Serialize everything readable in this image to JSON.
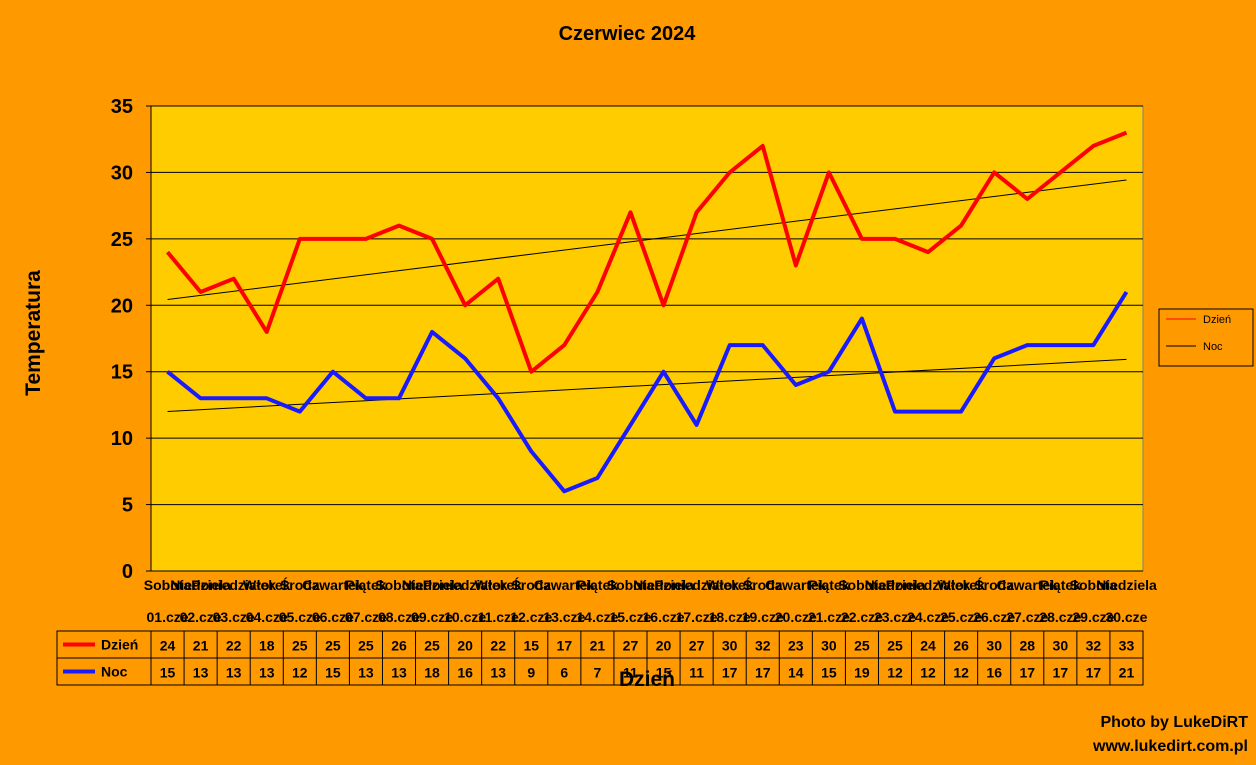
{
  "chart_data": {
    "type": "line",
    "title": "Czerwiec 2024",
    "xlabel": "Dzień",
    "ylabel": "Temperatura",
    "ylim": [
      0,
      35
    ],
    "yticks": [
      0,
      5,
      10,
      15,
      20,
      25,
      30,
      35
    ],
    "grid": "horizontal",
    "legend": "right",
    "categories_day": [
      "Sobota",
      "Niedziela",
      "Poniedziałek",
      "Wtorek",
      "Środa",
      "Czwartek",
      "Piątek",
      "Sobota",
      "Niedziela",
      "Poniedziałek",
      "Wtorek",
      "Środa",
      "Czwartek",
      "Piątek",
      "Sobota",
      "Niedziela",
      "Poniedziałek",
      "Wtorek",
      "Środa",
      "Czwartek",
      "Piątek",
      "Sobota",
      "Niedziela",
      "Poniedziałek",
      "Wtorek",
      "Środa",
      "Czwartek",
      "Piątek",
      "Sobota",
      "Niedziela"
    ],
    "categories_date": [
      "01.cze",
      "02.cze",
      "03.cze",
      "04.cze",
      "05.cze",
      "06.cze",
      "07.cze",
      "08.cze",
      "09.cze",
      "10.cze",
      "11.cze",
      "12.cze",
      "13.cze",
      "14.cze",
      "15.cze",
      "16.cze",
      "17.cze",
      "18.cze",
      "19.cze",
      "20.cze",
      "21.cze",
      "22.cze",
      "23.cze",
      "24.cze",
      "25.cze",
      "26.cze",
      "27.cze",
      "28.cze",
      "29.cze",
      "30.cze"
    ],
    "series": [
      {
        "name": "Dzień",
        "color": "#ff0000",
        "values": [
          24,
          21,
          22,
          18,
          25,
          25,
          25,
          26,
          25,
          20,
          22,
          15,
          17,
          21,
          27,
          20,
          27,
          30,
          32,
          23,
          30,
          25,
          25,
          24,
          26,
          30,
          28,
          30,
          32,
          33
        ]
      },
      {
        "name": "Noc",
        "color": "#1a1aff",
        "values": [
          15,
          13,
          13,
          13,
          12,
          15,
          13,
          13,
          18,
          16,
          13,
          9,
          6,
          7,
          11,
          15,
          11,
          17,
          17,
          14,
          15,
          19,
          12,
          12,
          12,
          16,
          17,
          17,
          17,
          21
        ]
      }
    ],
    "trendlines": "linear",
    "plot_background": "#ffcc00"
  },
  "credit": {
    "line1": "Photo by LukeDiRT",
    "line2": "www.lukedirt.com.pl"
  }
}
